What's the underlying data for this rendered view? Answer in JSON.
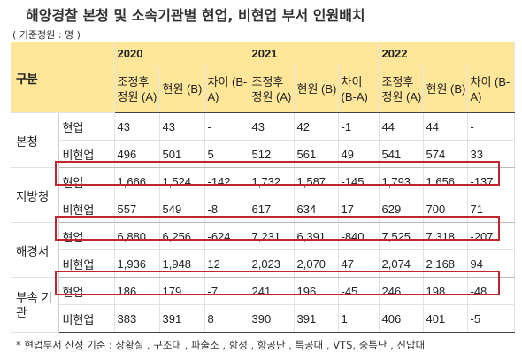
{
  "title": "해양경찰 본청 및 소속기관별 현업, 비현업 부서 인원배치",
  "unit": "( 기준정원 : 명 )",
  "table": {
    "group_header": "구분",
    "years": [
      "2020",
      "2021",
      "2022"
    ],
    "columns": [
      "조정후 정원 (A)",
      "현원 (B)",
      "차이 (B-A)"
    ],
    "groups": [
      {
        "name": "본청",
        "rows": [
          {
            "type": "현업",
            "values": [
              "43",
              "43",
              "-",
              "43",
              "42",
              "-1",
              "44",
              "44",
              "-"
            ]
          },
          {
            "type": "비현업",
            "values": [
              "496",
              "501",
              "5",
              "512",
              "561",
              "49",
              "541",
              "574",
              "33"
            ]
          }
        ]
      },
      {
        "name": "지방청",
        "rows": [
          {
            "type": "현업",
            "values": [
              "1,666",
              "1,524",
              "-142",
              "1,732",
              "1,587",
              "-145",
              "1,793",
              "1,656",
              "-137"
            ]
          },
          {
            "type": "비현업",
            "values": [
              "557",
              "549",
              "-8",
              "617",
              "634",
              "17",
              "629",
              "700",
              "71"
            ]
          }
        ]
      },
      {
        "name": "해경서",
        "rows": [
          {
            "type": "현업",
            "values": [
              "6,880",
              "6,256",
              "-624",
              "7,231",
              "6,391",
              "-840",
              "7,525",
              "7,318",
              "-207"
            ]
          },
          {
            "type": "비현업",
            "values": [
              "1,936",
              "1,948",
              "12",
              "2,023",
              "2,070",
              "47",
              "2,074",
              "2,168",
              "94"
            ]
          }
        ]
      },
      {
        "name": "부속 기관",
        "rows": [
          {
            "type": "현업",
            "values": [
              "186",
              "179",
              "-7",
              "241",
              "196",
              "-45",
              "246",
              "198",
              "-48"
            ]
          },
          {
            "type": "비현업",
            "values": [
              "383",
              "391",
              "8",
              "390",
              "391",
              "1",
              "406",
              "401",
              "-5"
            ]
          }
        ]
      }
    ]
  },
  "footnote": "* 현업부서 산정 기준 : 상황실 , 구조대 , 파출소 , 함정 , 항공단 , 특공대 , VTS, 중특단 , 진압대",
  "colors": {
    "header_bg": "#ffe699",
    "highlight_border": "#c0262d"
  }
}
